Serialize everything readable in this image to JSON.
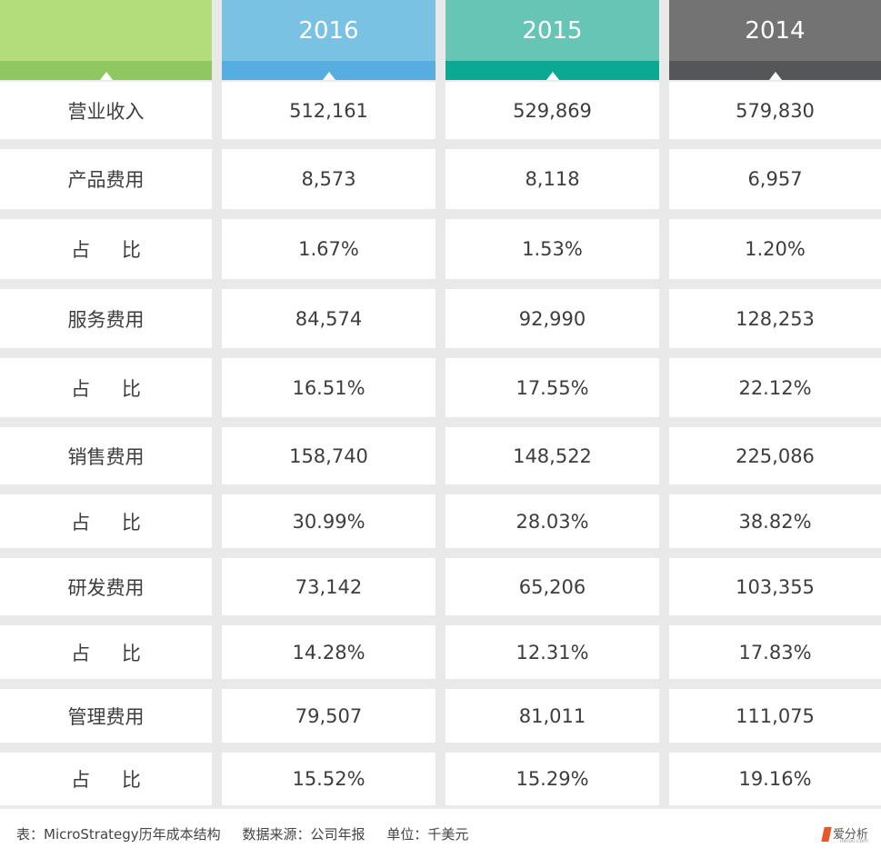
{
  "chart_data": {
    "type": "table",
    "headers": [
      "",
      "2016",
      "2015",
      "2014"
    ],
    "header_colors": {
      "label": {
        "top": "#b2dd7a",
        "bar": "#8fc861"
      },
      "2016": {
        "top": "#79c2e3",
        "bar": "#55ade0"
      },
      "2015": {
        "top": "#66c5b5",
        "bar": "#09a993"
      },
      "2014": {
        "top": "#737373",
        "bar": "#555658"
      }
    },
    "rows": [
      {
        "label": "营业收入",
        "values": [
          "512,161",
          "529,869",
          "579,830"
        ]
      },
      {
        "label": "产品费用",
        "values": [
          "8,573",
          "8,118",
          "6,957"
        ]
      },
      {
        "label": "占 比",
        "values": [
          "1.67%",
          "1.53%",
          "1.20%"
        ]
      },
      {
        "label": "服务费用",
        "values": [
          "84,574",
          "92,990",
          "128,253"
        ]
      },
      {
        "label": "占 比",
        "values": [
          "16.51%",
          "17.55%",
          "22.12%"
        ]
      },
      {
        "label": "销售费用",
        "values": [
          "158,740",
          "148,522",
          "225,086"
        ]
      },
      {
        "label": "占 比",
        "values": [
          "30.99%",
          "28.03%",
          "38.82%"
        ]
      },
      {
        "label": "研发费用",
        "values": [
          "73,142",
          "65,206",
          "103,355"
        ]
      },
      {
        "label": "占 比",
        "values": [
          "14.28%",
          "12.31%",
          "17.83%"
        ]
      },
      {
        "label": "管理费用",
        "values": [
          "79,507",
          "81,011",
          "111,075"
        ]
      },
      {
        "label": "占 比",
        "values": [
          "15.52%",
          "15.29%",
          "19.16%"
        ]
      }
    ]
  },
  "footer": {
    "note": "表：MicroStrategy历年成本结构     数据来源：公司年报     单位：千美元",
    "logo_text": "爱分析",
    "logo_sub": "ifenxi.com"
  }
}
